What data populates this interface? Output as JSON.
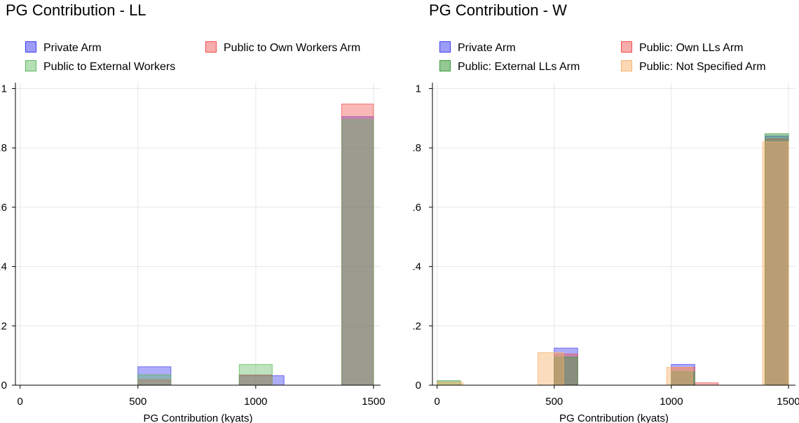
{
  "chart_data": [
    {
      "type": "bar",
      "title": "PG Contribution - LL",
      "xlabel": "PG Contribution (kyats)",
      "ylabel": "",
      "xlim": [
        -20,
        1530
      ],
      "ylim": [
        0,
        1.02
      ],
      "grid": true,
      "legend_position": "top",
      "x_ticks": [
        0,
        500,
        1000,
        1500
      ],
      "x_tick_labels": [
        "0",
        "500",
        "1000",
        "1500"
      ],
      "y_ticks": [
        0,
        0.2,
        0.4,
        0.6,
        0.8,
        1
      ],
      "y_tick_labels": [
        "0",
        ".2",
        ".4",
        ".6",
        ".8",
        "1"
      ],
      "series": [
        {
          "name": "Private Arm",
          "color": "#3c3cf0",
          "fill_opacity": 0.42,
          "bars": [
            {
              "x0": 500,
              "x1": 640,
              "value": 0.062
            },
            {
              "x0": 930,
              "x1": 1120,
              "value": 0.032
            },
            {
              "x0": 1365,
              "x1": 1500,
              "value": 0.905
            }
          ]
        },
        {
          "name": "Public to Own Workers Arm",
          "color": "#f04a4a",
          "fill_opacity": 0.4,
          "bars": [
            {
              "x0": 500,
              "x1": 640,
              "value": 0.018
            },
            {
              "x0": 930,
              "x1": 1070,
              "value": 0.035
            },
            {
              "x0": 1365,
              "x1": 1500,
              "value": 0.948
            }
          ]
        },
        {
          "name": "Public to External Workers",
          "color": "#5cb85c",
          "fill_opacity": 0.4,
          "bars": [
            {
              "x0": 500,
              "x1": 640,
              "value": 0.035
            },
            {
              "x0": 930,
              "x1": 1070,
              "value": 0.07
            },
            {
              "x0": 1365,
              "x1": 1500,
              "value": 0.895
            }
          ]
        }
      ]
    },
    {
      "type": "bar",
      "title": "PG Contribution - W",
      "xlabel": "PG Contribution (kyats)",
      "ylabel": "",
      "xlim": [
        -20,
        1530
      ],
      "ylim": [
        0,
        1.02
      ],
      "grid": true,
      "legend_position": "top",
      "x_ticks": [
        0,
        500,
        1000,
        1500
      ],
      "x_tick_labels": [
        "0",
        "500",
        "1000",
        "1500"
      ],
      "y_ticks": [
        0,
        0.2,
        0.4,
        0.6,
        0.8,
        1
      ],
      "y_tick_labels": [
        "0",
        ".2",
        ".4",
        ".6",
        ".8",
        "1"
      ],
      "series": [
        {
          "name": "Private Arm",
          "color": "#3c3cf0",
          "fill_opacity": 0.42,
          "bars": [
            {
              "x0": 500,
              "x1": 600,
              "value": 0.125
            },
            {
              "x0": 1000,
              "x1": 1100,
              "value": 0.07
            },
            {
              "x0": 1400,
              "x1": 1500,
              "value": 0.84
            }
          ]
        },
        {
          "name": "Public: Own LLs Arm",
          "color": "#f04a4a",
          "fill_opacity": 0.4,
          "bars": [
            {
              "x0": 500,
              "x1": 600,
              "value": 0.105
            },
            {
              "x0": 1000,
              "x1": 1100,
              "value": 0.06
            },
            {
              "x0": 1100,
              "x1": 1200,
              "value": 0.008
            },
            {
              "x0": 1400,
              "x1": 1500,
              "value": 0.83
            }
          ]
        },
        {
          "name": "Public: External LLs Arm",
          "color": "#3a9a3a",
          "fill_opacity": 0.45,
          "bars": [
            {
              "x0": 0,
              "x1": 100,
              "value": 0.015
            },
            {
              "x0": 500,
              "x1": 600,
              "value": 0.095
            },
            {
              "x0": 1000,
              "x1": 1100,
              "value": 0.045
            },
            {
              "x0": 1400,
              "x1": 1500,
              "value": 0.848
            }
          ]
        },
        {
          "name": "Public: Not Specified Arm",
          "color": "#f7b26a",
          "fill_opacity": 0.45,
          "bars": [
            {
              "x0": 0,
              "x1": 110,
              "value": 0.01
            },
            {
              "x0": 430,
              "x1": 540,
              "value": 0.11
            },
            {
              "x0": 980,
              "x1": 1090,
              "value": 0.06
            },
            {
              "x0": 1390,
              "x1": 1500,
              "value": 0.82
            }
          ]
        }
      ]
    }
  ]
}
